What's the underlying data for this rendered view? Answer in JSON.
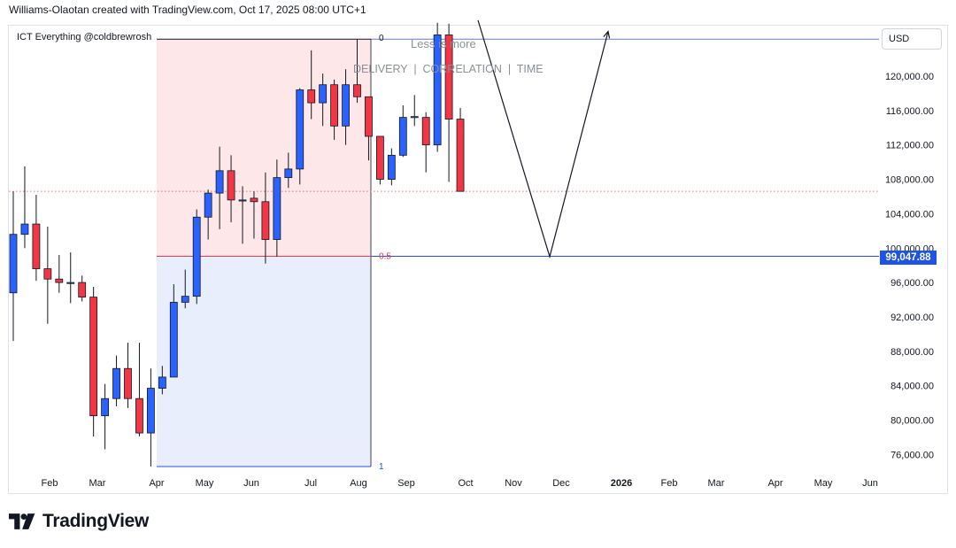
{
  "header": {
    "text": "Williams-Olaotan created with TradingView.com, Oct 17, 2025 08:00 UTC+1"
  },
  "indicator_label": "ICT Everything @coldbrewrosh",
  "annotations": {
    "line1": "Less is more",
    "line2": "DELIVERY  |  CORRELATION  |  TIME"
  },
  "currency": "USD",
  "current_price_label": "99,047.88",
  "brand": {
    "name": "TradingView"
  },
  "colors": {
    "up": "#2962ff",
    "down": "#f23645",
    "premium_zone": "#fde7e9",
    "discount_zone": "#e8eefc",
    "eq_line": "#1e53e5",
    "top_line": "#5b7fd8",
    "fib_label": "#f23645",
    "price_tag": "#1e53e5"
  },
  "chart_data": {
    "type": "candlestick",
    "interval": "1W",
    "y_ticks": [
      "76,000.00",
      "80,000.00",
      "84,000.00",
      "88,000.00",
      "92,000.00",
      "96,000.00",
      "100,000.00",
      "104,000.00",
      "108,000.00",
      "112,000.00",
      "116,000.00",
      "120,000.00"
    ],
    "x_ticks": [
      "Feb",
      "Mar",
      "Apr",
      "May",
      "Jun",
      "Jul",
      "Aug",
      "Sep",
      "Oct",
      "Nov",
      "Dec",
      "2026",
      "Feb",
      "Mar",
      "Apr",
      "May",
      "Jun"
    ],
    "ylim": [
      73000,
      125700
    ],
    "fib_levels": [
      {
        "label": "0",
        "price": 124300
      },
      {
        "label": "0.5",
        "price": 99047.88
      },
      {
        "label": "1",
        "price": 74600
      }
    ],
    "dotted_level": 106600,
    "candles": [
      {
        "o": 94800,
        "h": 106600,
        "l": 89200,
        "c": 101600
      },
      {
        "o": 101600,
        "h": 109500,
        "l": 100000,
        "c": 102800
      },
      {
        "o": 102800,
        "h": 106200,
        "l": 96200,
        "c": 97600
      },
      {
        "o": 97600,
        "h": 102500,
        "l": 91200,
        "c": 96400
      },
      {
        "o": 96400,
        "h": 99200,
        "l": 94800,
        "c": 96000
      },
      {
        "o": 96000,
        "h": 99500,
        "l": 93600,
        "c": 96000
      },
      {
        "o": 96000,
        "h": 96800,
        "l": 93800,
        "c": 94300
      },
      {
        "o": 94300,
        "h": 95500,
        "l": 78100,
        "c": 80500
      },
      {
        "o": 80500,
        "h": 84200,
        "l": 76600,
        "c": 82500
      },
      {
        "o": 82500,
        "h": 87500,
        "l": 81600,
        "c": 86000
      },
      {
        "o": 86000,
        "h": 89000,
        "l": 81400,
        "c": 82500
      },
      {
        "o": 82500,
        "h": 89000,
        "l": 78100,
        "c": 78500
      },
      {
        "o": 78500,
        "h": 86000,
        "l": 74600,
        "c": 83700
      },
      {
        "o": 83700,
        "h": 86300,
        "l": 83000,
        "c": 85000
      },
      {
        "o": 85000,
        "h": 95800,
        "l": 85000,
        "c": 93700
      },
      {
        "o": 93700,
        "h": 97500,
        "l": 93000,
        "c": 94400
      },
      {
        "o": 94400,
        "h": 104500,
        "l": 93500,
        "c": 103600
      },
      {
        "o": 103600,
        "h": 106800,
        "l": 101000,
        "c": 106400
      },
      {
        "o": 106400,
        "h": 111800,
        "l": 102200,
        "c": 109000
      },
      {
        "o": 109000,
        "h": 110800,
        "l": 103000,
        "c": 105600
      },
      {
        "o": 105600,
        "h": 107200,
        "l": 100500,
        "c": 105600
      },
      {
        "o": 105800,
        "h": 106600,
        "l": 101100,
        "c": 105400
      },
      {
        "o": 105400,
        "h": 108800,
        "l": 98200,
        "c": 101000
      },
      {
        "o": 101000,
        "h": 110300,
        "l": 99000,
        "c": 108200
      },
      {
        "o": 108200,
        "h": 111100,
        "l": 107000,
        "c": 109200
      },
      {
        "o": 109200,
        "h": 118600,
        "l": 107400,
        "c": 118400
      },
      {
        "o": 118400,
        "h": 123000,
        "l": 115000,
        "c": 116900
      },
      {
        "o": 116900,
        "h": 120300,
        "l": 114200,
        "c": 119000
      },
      {
        "o": 119000,
        "h": 119600,
        "l": 112600,
        "c": 114200
      },
      {
        "o": 114200,
        "h": 120800,
        "l": 112000,
        "c": 119000
      },
      {
        "o": 119000,
        "h": 124300,
        "l": 116900,
        "c": 117600
      },
      {
        "o": 117600,
        "h": 117600,
        "l": 110200,
        "c": 113000
      },
      {
        "o": 113000,
        "h": 113000,
        "l": 107400,
        "c": 108000
      },
      {
        "o": 108000,
        "h": 111600,
        "l": 107300,
        "c": 110800
      },
      {
        "o": 110800,
        "h": 116600,
        "l": 110600,
        "c": 115200
      },
      {
        "o": 115200,
        "h": 117800,
        "l": 114200,
        "c": 115300
      },
      {
        "o": 115200,
        "h": 115800,
        "l": 108800,
        "c": 112000
      },
      {
        "o": 112000,
        "h": 126200,
        "l": 111200,
        "c": 124800
      },
      {
        "o": 124800,
        "h": 126100,
        "l": 107700,
        "c": 115000
      },
      {
        "o": 115000,
        "h": 116300,
        "l": 106600,
        "c": 106600
      }
    ],
    "projection_path": [
      {
        "date": "Oct 2025",
        "price": 126500
      },
      {
        "date": "Dec 2025",
        "price": 99000
      },
      {
        "date": "Jan 2026",
        "price": 125200
      }
    ]
  }
}
